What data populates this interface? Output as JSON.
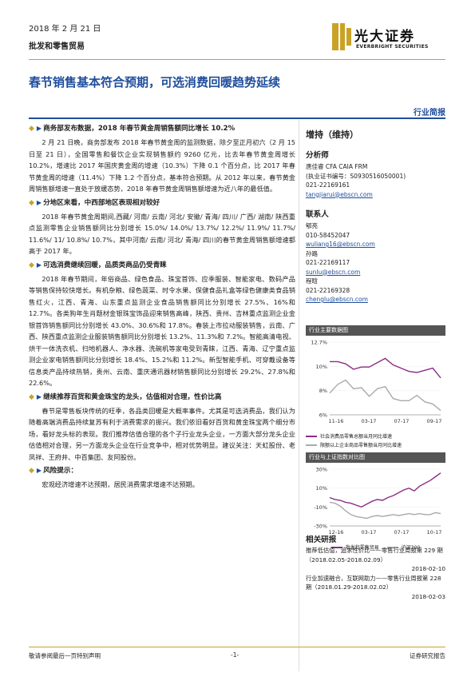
{
  "header": {
    "date": "2018 年 2 月 21 日",
    "sector": "批发和零售贸易",
    "logo_cn": "光大证券",
    "logo_en": "EVERBRIGHT SECURITIES",
    "brand_color": "#c9a227"
  },
  "title": "春节销售基本符合预期，可选消费回暖趋势延续",
  "report_type": "行业简报",
  "sections": [
    {
      "heading": "商务部发布数据，2018 年春节黄金周销售额同比增长 10.2%",
      "paragraph": "2 月 21 日晚，商务部发布 2018 年春节黄金周的监测数据，除夕至正月初六（2 月 15 日至 21 日），全国零售和餐饮企业实现销售额约 9260 亿元，比去年春节黄金周增长 10.2%，增速比 2017 年国庆黄金周的增速（10.3%）下降 0.1 个百分点，比 2017 年春节黄金周的增速（11.4%）下降 1.2 个百分点，基本符合预期。从 2012 年以来，春节黄金周销售额增速一直处于放缓态势，2018 年春节黄金周销售额增速为近八年的最低值。"
    },
    {
      "heading": "分地区来看，中西部地区表现相对较好",
      "paragraph": "2018 年春节黄金周期间,西藏/ 河南/ 云南/ 河北/ 安徽/ 青海/ 四川/ 广西/ 湖南/ 陕西重点监测零售企业销售额同比分别增长 15.0%/ 14.0%/ 13.7%/ 12.2%/ 11.9%/ 11.7%/ 11.6%/ 11/ 10.8%/ 10.7%，其中河南/ 云南/ 河北/ 青海/ 四川的春节黄金周销售额增速都高于 2017 年。"
    },
    {
      "heading": "可选消费继续回暖，品质类商品仍受青睐",
      "paragraph": "2018 年春节期间，年俗商品、绿色食品、珠宝首饰、应季服装、智能家电、数码产品等销售保持较快增长。有机杂粮、绿色蔬菜、时令水果、保健食品礼盒等绿色健康类食品销售红火，江西、青海、山东重点监测企业食品销售额同比分别增长 27.5%、16%和 12.7%。各类狗年生肖题材金银珠宝饰品迎来销售高峰，陕西、贵州、吉林重点监测企业金银首饰销售额同比分别增长 43.0%、30.6%和 17.8%。春装上市拉动服装销售，云南、广西、陕西重点监测企业服装销售额同比分别增长 13.2%、11.3%和 7.2%。智能高清电视、烘干一体洗衣机、扫地机器人、净水器、洗碗机等家电受到青睐，江西、青海、辽宁重点监测企业家电销售额同比分别增长 18.4%、15.2%和 11.2%。新型智能手机、可穿戴设备等信息类产品持续热销，贵州、云南、重庆通讯器材销售额同比分别增长 29.2%、27.8%和 22.6%。"
    },
    {
      "heading": "继续推荐百货和黄金珠宝的龙头，估值相对合理，性价比高",
      "paragraph": "春节是零售板块传统的旺季，各品类回暖是大概率事件。尤其是可选消费品，我们认为随着高端消费品持续复苏有利于消费需求的振兴。我们依旧看好百货和黄金珠宝两个细分市场，看好龙头标的表现。我们推荐估值合理的各个子行业龙头企业，一方面大部分龙头企业估值相对合理，另一方面龙头企业在行业竞争中，相对优势明显。建议关注：天虹股份、老凤祥、王府井、中百集团、友阿股份。"
    },
    {
      "heading": "风险提示：",
      "paragraph": "宏观经济增速不达预期，居民消费需求增速不达预期。"
    }
  ],
  "sidebar": {
    "rating": "增持（维持）",
    "analyst_head": "分析师",
    "analyst_name": "唐佳睿 CFA CAIA FRM",
    "analyst_cert": "(执业证书编号：S0930516050001)",
    "analyst_phone": "021-22169161",
    "analyst_email": "tangjiarui@ebscn.com",
    "contact_head": "联系人",
    "contacts": [
      {
        "name": "郇亮",
        "phone": "010-58452047",
        "email": "wuliang16@ebscn.com"
      },
      {
        "name": "孙路",
        "phone": "021-22169117",
        "email": "sunlu@ebscn.com"
      },
      {
        "name": "程晗",
        "phone": "021-22169328",
        "email": "chenglu@ebscn.com"
      }
    ]
  },
  "chart_data": [
    {
      "type": "line",
      "title": "行业主要数据图",
      "x_ticks": [
        "11-16",
        "03-17",
        "07-17",
        "09-17"
      ],
      "ylim": [
        6,
        12.7
      ],
      "y_ticks": [
        "12.7%",
        "10%",
        "8%",
        "6%"
      ],
      "series": [
        {
          "name": "社会消费品零售总额当月同比增速",
          "color": "#8b2d86",
          "values": [
            10.9,
            10.9,
            10.7,
            10.2,
            10.4,
            10.4,
            10.8,
            11.2,
            10.6,
            10.3,
            10.0,
            9.9,
            10.1,
            10.3,
            9.4
          ]
        },
        {
          "name": "限额以上企业商品零售额当月同比增速",
          "color": "#aaaaaa",
          "values": [
            8.0,
            8.8,
            9.2,
            8.4,
            8.5,
            7.7,
            8.4,
            8.6,
            7.5,
            7.3,
            7.3,
            7.8,
            7.2,
            7.0,
            6.4
          ]
        }
      ]
    },
    {
      "type": "line",
      "title": "行业与上证指数对比图",
      "x_ticks": [
        "12-16",
        "03-17",
        "07-17",
        "10-17"
      ],
      "ylim": [
        -30,
        30
      ],
      "y_ticks": [
        "30%",
        "10%",
        "-10%",
        "-30%"
      ],
      "series": [
        {
          "name": "批发和零售贸易",
          "color": "#8b2d86",
          "values": [
            0,
            -2,
            -3,
            -5,
            -6,
            -8,
            -10,
            -7,
            -4,
            -2,
            -3,
            0,
            2,
            5,
            8,
            10,
            7,
            12,
            15,
            18,
            22,
            26
          ]
        },
        {
          "name": "沪深300",
          "color": "#aaaaaa",
          "values": [
            -5,
            -6,
            -9,
            -14,
            -18,
            -20,
            -21,
            -22,
            -20,
            -19,
            -20,
            -19,
            -18,
            -19,
            -18,
            -17,
            -18,
            -17,
            -18,
            -18,
            -16,
            -17
          ]
        }
      ]
    }
  ],
  "related": {
    "heading": "相关研报",
    "items": [
      {
        "text": "推荐低估值，追求性价比——零售行业周报第 229 期（2018.02.05-2018.02.09）",
        "date": "2018-02-10"
      },
      {
        "text": "行业加速融合，互联网助力——零售行业周报第 228 期（2018.01.29-2018.02.02）",
        "date": "2018-02-03"
      }
    ]
  },
  "footer": {
    "left": "敬请参阅最后一页特别声明",
    "center": "-1-",
    "right": "证券研究报告"
  }
}
